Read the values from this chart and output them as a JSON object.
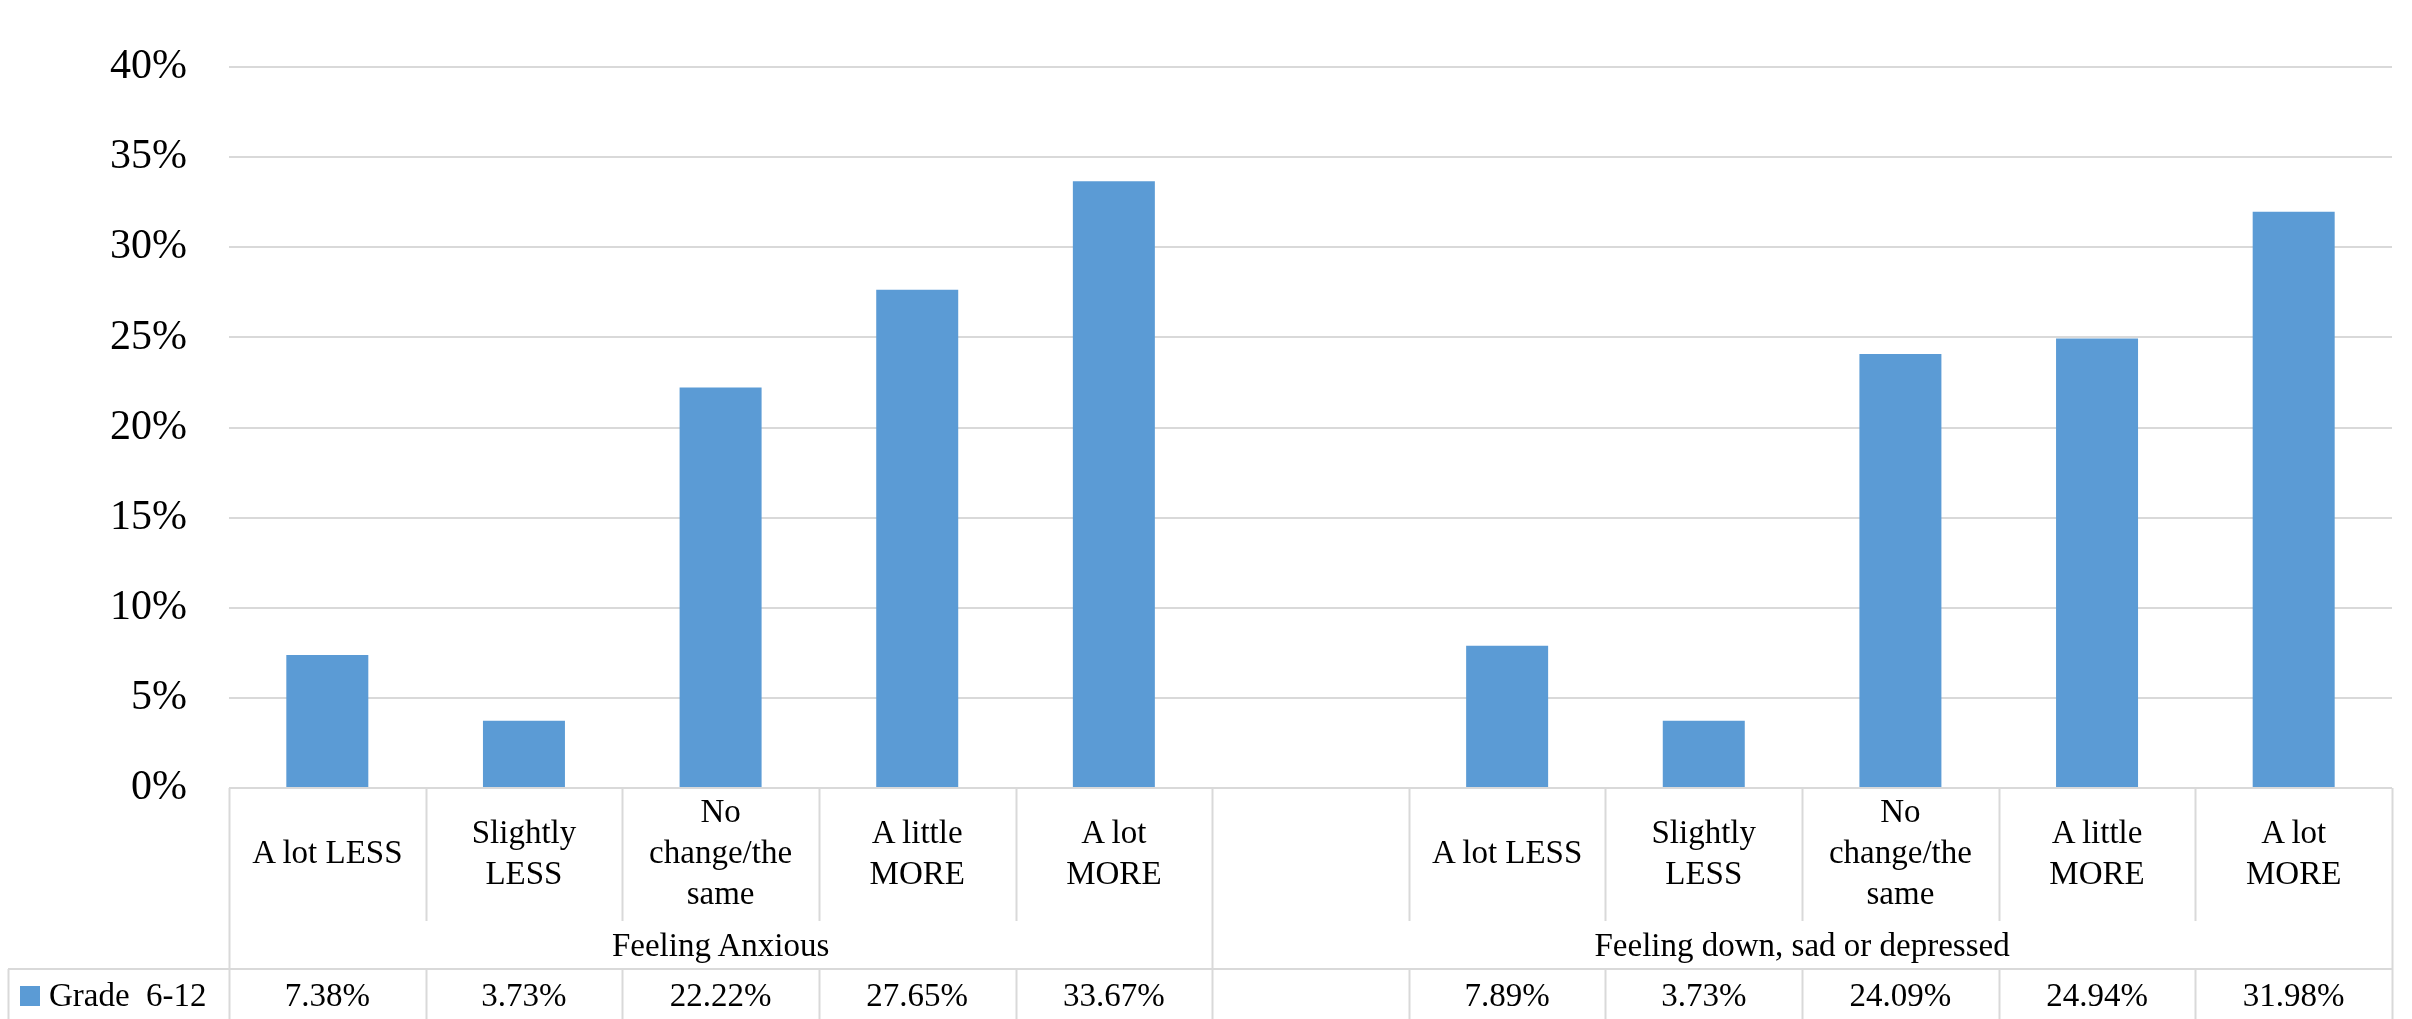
{
  "chart_data": {
    "type": "bar",
    "categories": [
      "A lot LESS",
      "Slightly LESS",
      "No change/the same",
      "A little MORE",
      "A lot MORE",
      null,
      "A lot LESS",
      "Slightly LESS",
      "No change/the same",
      "A little MORE",
      "A lot MORE"
    ],
    "series": [
      {
        "name": "Grade  6-12",
        "color": "#5b9bd5",
        "values": [
          7.38,
          3.73,
          22.22,
          27.65,
          33.67,
          null,
          7.89,
          3.73,
          24.09,
          24.94,
          31.98
        ],
        "value_labels": [
          "7.38%",
          "3.73%",
          "22.22%",
          "27.65%",
          "33.67%",
          null,
          "7.89%",
          "3.73%",
          "24.09%",
          "24.94%",
          "31.98%"
        ]
      }
    ],
    "annotations": [
      "Feeling Anxious",
      "Feeling down, sad or depressed"
    ],
    "ylim": [
      0,
      40
    ],
    "yticks": [
      {
        "value": 0,
        "label": "0%"
      },
      {
        "value": 5,
        "label": "5%"
      },
      {
        "value": 10,
        "label": "10%"
      },
      {
        "value": 15,
        "label": "15%"
      },
      {
        "value": 20,
        "label": "20%"
      },
      {
        "value": 25,
        "label": "25%"
      },
      {
        "value": 30,
        "label": "30%"
      },
      {
        "value": 35,
        "label": "35%"
      },
      {
        "value": 40,
        "label": "40%"
      }
    ],
    "grid": "y",
    "legend": "bottom left"
  }
}
